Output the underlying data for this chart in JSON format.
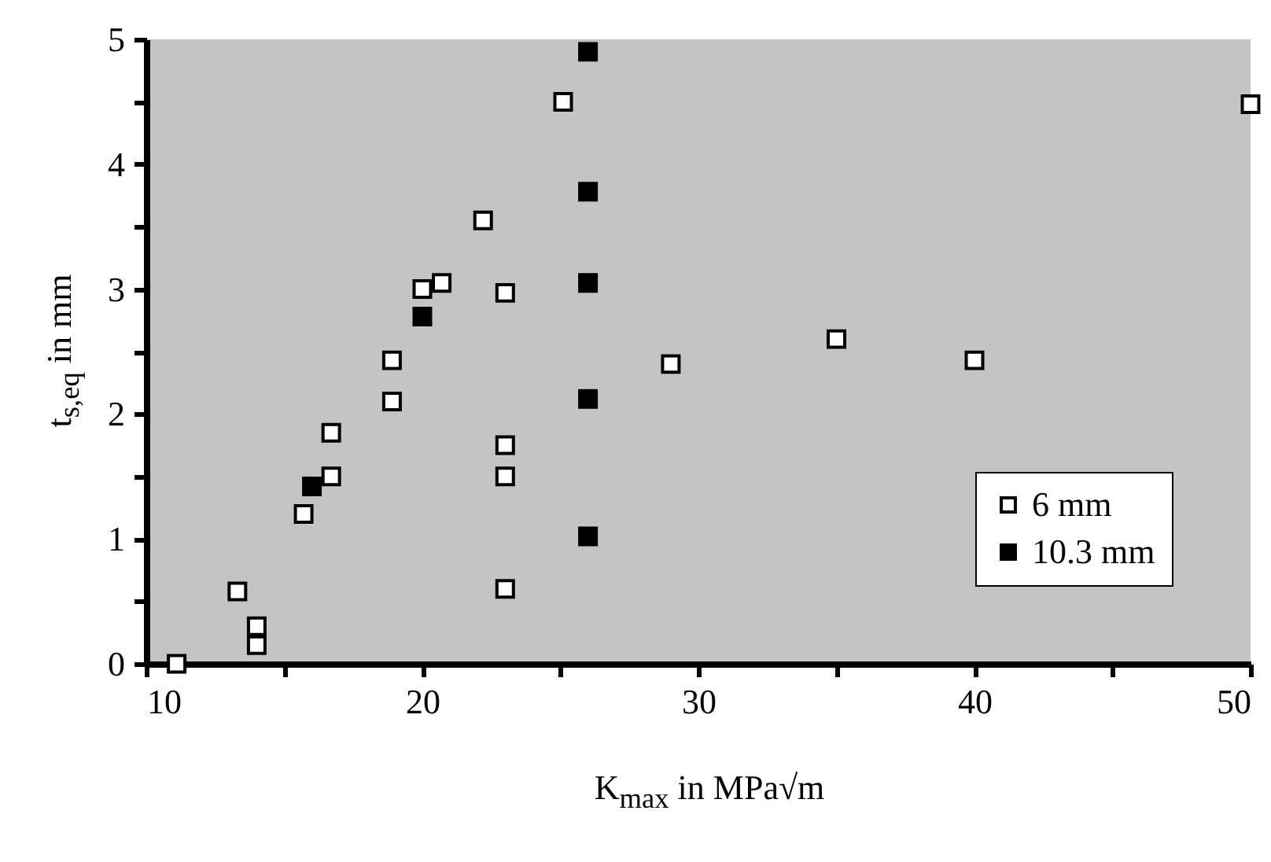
{
  "chart_data": {
    "type": "scatter",
    "xlabel": "K$_{max}$ in MPa√m",
    "ylabel": "t$_{s,eq}$ in mm",
    "xlim": [
      10,
      50
    ],
    "ylim": [
      0,
      5
    ],
    "xticks": [
      10,
      {
        "value": 15,
        "label": null
      },
      20,
      {
        "value": 25,
        "label": null
      },
      30,
      {
        "value": 35,
        "label": null
      },
      40,
      {
        "value": 45,
        "label": null
      },
      50
    ],
    "yticks": [
      0,
      {
        "value": 0.5,
        "label": null
      },
      1,
      {
        "value": 1.5,
        "label": null
      },
      2,
      {
        "value": 2.5,
        "label": null
      },
      3,
      {
        "value": 3.5,
        "label": null
      },
      4,
      {
        "value": 4.5,
        "label": null
      },
      5
    ],
    "marker": "square",
    "legend": "bottom right",
    "grid": false,
    "series": [
      {
        "name": "6 mm",
        "color": "#ffffff",
        "x": [
          11.1,
          13.3,
          14,
          14,
          15.7,
          16.7,
          16.7,
          18.9,
          18.9,
          20,
          20.7,
          22.2,
          23,
          23,
          23,
          23,
          25.1,
          29,
          35,
          40,
          50
        ],
        "values": [
          0,
          0.58,
          0.3,
          0.15,
          1.2,
          1.5,
          1.85,
          2.1,
          2.43,
          3.0,
          3.05,
          3.55,
          2.97,
          1.75,
          1.5,
          0.6,
          4.5,
          2.4,
          2.6,
          2.43,
          4.48
        ]
      },
      {
        "name": "10.3 mm",
        "color": "#000000",
        "x": [
          16,
          20,
          26,
          26,
          26,
          26,
          26
        ],
        "values": [
          1.42,
          2.78,
          4.9,
          3.78,
          3.05,
          2.12,
          1.02
        ]
      }
    ]
  }
}
